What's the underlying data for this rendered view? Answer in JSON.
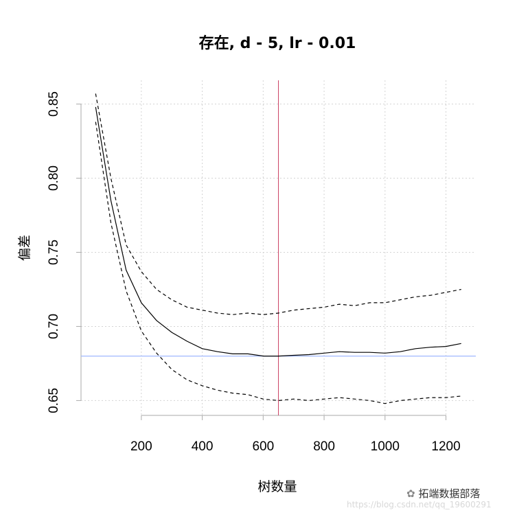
{
  "chart_data": {
    "type": "line",
    "title": "存在, d - 5, lr - 0.01",
    "xlabel": "树数量",
    "ylabel": "偏差",
    "xlim": [
      2,
      1298
    ],
    "ylim": [
      0.64,
      0.866
    ],
    "xticks": [
      200,
      400,
      600,
      800,
      1000,
      1200
    ],
    "yticks": [
      0.65,
      0.7,
      0.75,
      0.8,
      0.85
    ],
    "ytick_labels": [
      "0.65",
      "0.70",
      "0.75",
      "0.80",
      "0.85"
    ],
    "grid": true,
    "x": [
      50,
      100,
      150,
      200,
      250,
      300,
      350,
      400,
      450,
      500,
      550,
      600,
      650,
      700,
      750,
      800,
      850,
      900,
      950,
      1000,
      1050,
      1100,
      1150,
      1200,
      1250
    ],
    "series": [
      {
        "style": "solid",
        "values": [
          0.848,
          0.785,
          0.738,
          0.716,
          0.704,
          0.696,
          0.69,
          0.685,
          0.683,
          0.6815,
          0.6815,
          0.68,
          0.68,
          0.6805,
          0.681,
          0.682,
          0.683,
          0.6825,
          0.6825,
          0.682,
          0.683,
          0.685,
          0.686,
          0.6865,
          0.6885
        ]
      },
      {
        "style": "dashed",
        "values": [
          0.857,
          0.8,
          0.755,
          0.737,
          0.725,
          0.718,
          0.713,
          0.711,
          0.709,
          0.708,
          0.709,
          0.708,
          0.709,
          0.711,
          0.712,
          0.713,
          0.715,
          0.714,
          0.716,
          0.716,
          0.718,
          0.72,
          0.721,
          0.723,
          0.725
        ]
      },
      {
        "style": "dashed",
        "values": [
          0.838,
          0.77,
          0.724,
          0.697,
          0.682,
          0.671,
          0.664,
          0.66,
          0.657,
          0.655,
          0.654,
          0.651,
          0.65,
          0.651,
          0.65,
          0.651,
          0.652,
          0.651,
          0.65,
          0.648,
          0.65,
          0.651,
          0.652,
          0.652,
          0.653
        ]
      }
    ],
    "vline": {
      "x": 650,
      "color": "#cc4466"
    },
    "hline": {
      "y": 0.68,
      "color": "#a0b8ff"
    }
  },
  "watermark": {
    "brand": "拓端数据部落",
    "url": "https://blog.csdn.net/qq_19600291"
  }
}
